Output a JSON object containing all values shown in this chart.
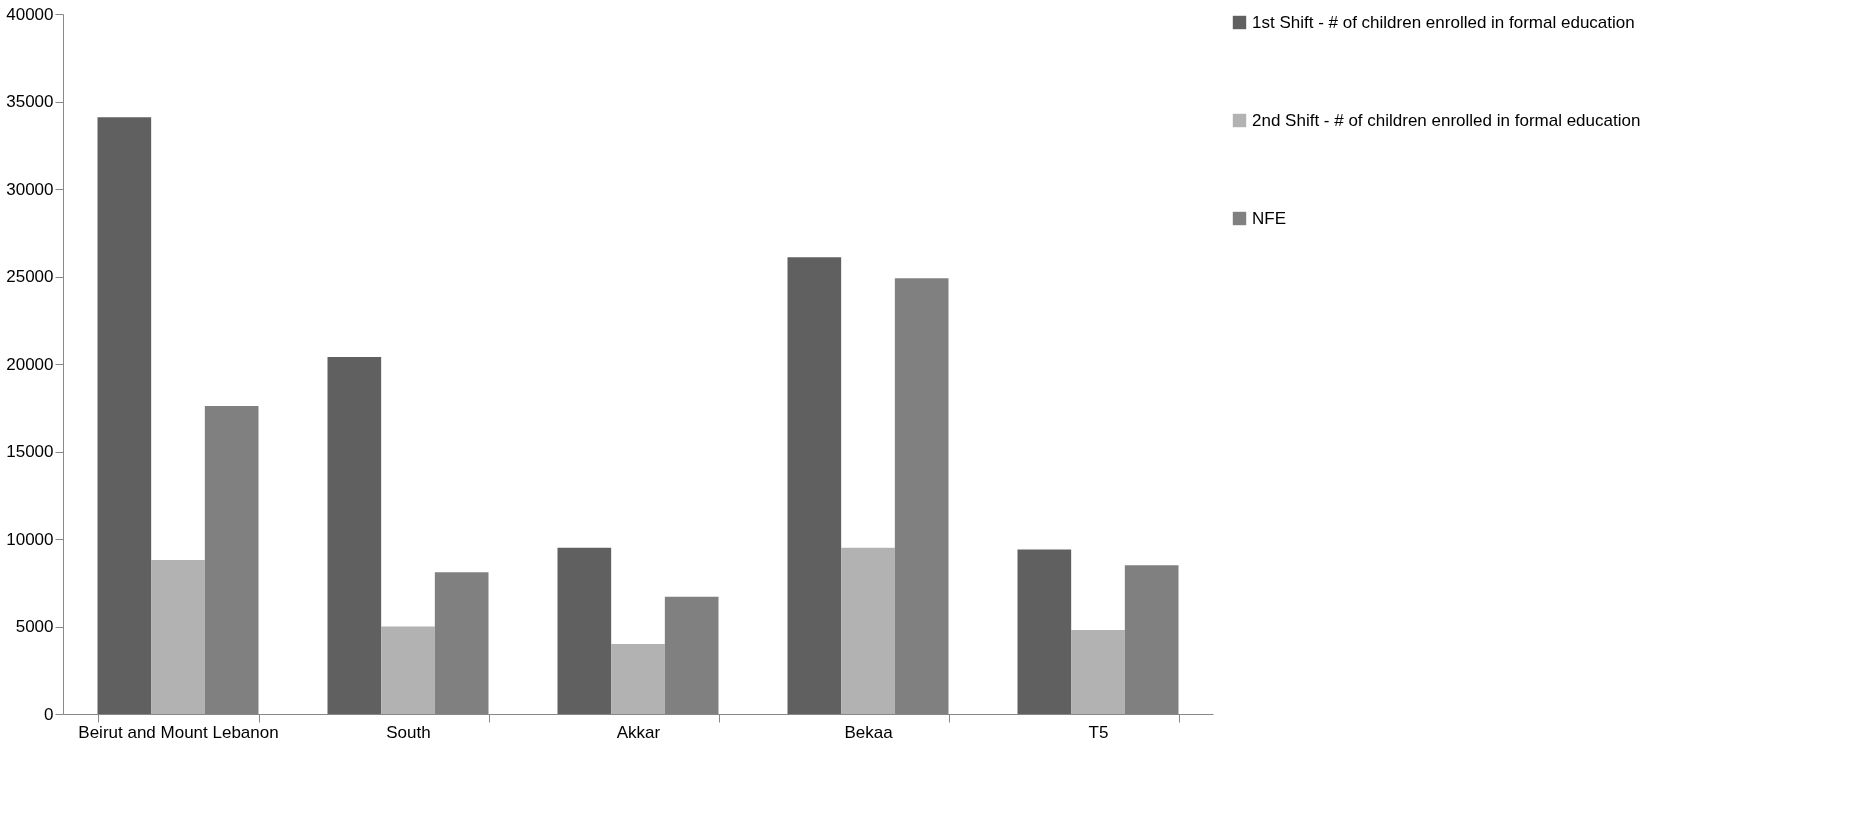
{
  "chart_data": {
    "type": "bar",
    "categories": [
      "Beirut and Mount Lebanon",
      "South",
      "Akkar",
      "Bekaa",
      "T5"
    ],
    "series": [
      {
        "name": "1st Shift - # of children enrolled in formal education",
        "color": "#606060",
        "values": [
          34100,
          20400,
          9500,
          26100,
          9400
        ]
      },
      {
        "name": "2nd Shift - # of children enrolled in formal education",
        "color": "#b2b2b2",
        "values": [
          8800,
          5000,
          4000,
          9500,
          4800
        ]
      },
      {
        "name": "NFE",
        "color": "#808080",
        "values": [
          17600,
          8100,
          6700,
          24900,
          8500
        ]
      }
    ],
    "ylim": [
      0,
      40000
    ],
    "yticks": [
      0,
      5000,
      10000,
      15000,
      20000,
      25000,
      30000,
      35000,
      40000
    ],
    "grid": false,
    "legend": "right"
  }
}
